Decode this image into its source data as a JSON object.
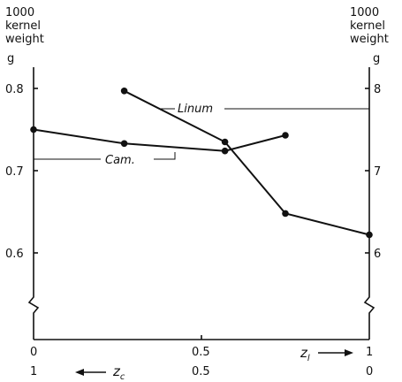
{
  "chart_data": {
    "type": "line",
    "left_axis": {
      "header": [
        "1000",
        "kernel",
        "weight"
      ],
      "unit": "g",
      "ticks": [
        "0.8",
        "0.7",
        "0.6"
      ],
      "tick_values": [
        0.8,
        0.7,
        0.6
      ],
      "ylim": [
        0.55,
        0.85
      ]
    },
    "right_axis": {
      "header": [
        "1000",
        "kernel",
        "weight"
      ],
      "unit": "g",
      "ticks": [
        "8",
        "7",
        "6"
      ],
      "tick_values": [
        8,
        7,
        6
      ],
      "ylim": [
        5.5,
        8.5
      ]
    },
    "x_axis": {
      "xlim": [
        0,
        1
      ],
      "top_ticks": [
        "0",
        "0.5",
        "1"
      ],
      "bottom_ticks": [
        "1",
        "0.5",
        "0"
      ],
      "z_l_label": "z",
      "z_l_sub": "l",
      "z_c_label": "z",
      "z_c_sub": "c"
    },
    "series": [
      {
        "name": "Cam.",
        "axis": "left",
        "x": [
          0.0,
          0.27,
          0.57,
          0.75
        ],
        "y": [
          0.75,
          0.733,
          0.724,
          0.743
        ]
      },
      {
        "name": "Linum",
        "axis": "right",
        "x": [
          0.27,
          0.57,
          0.75,
          1.0
        ],
        "y": [
          7.97,
          7.35,
          6.48,
          6.22
        ]
      }
    ]
  }
}
